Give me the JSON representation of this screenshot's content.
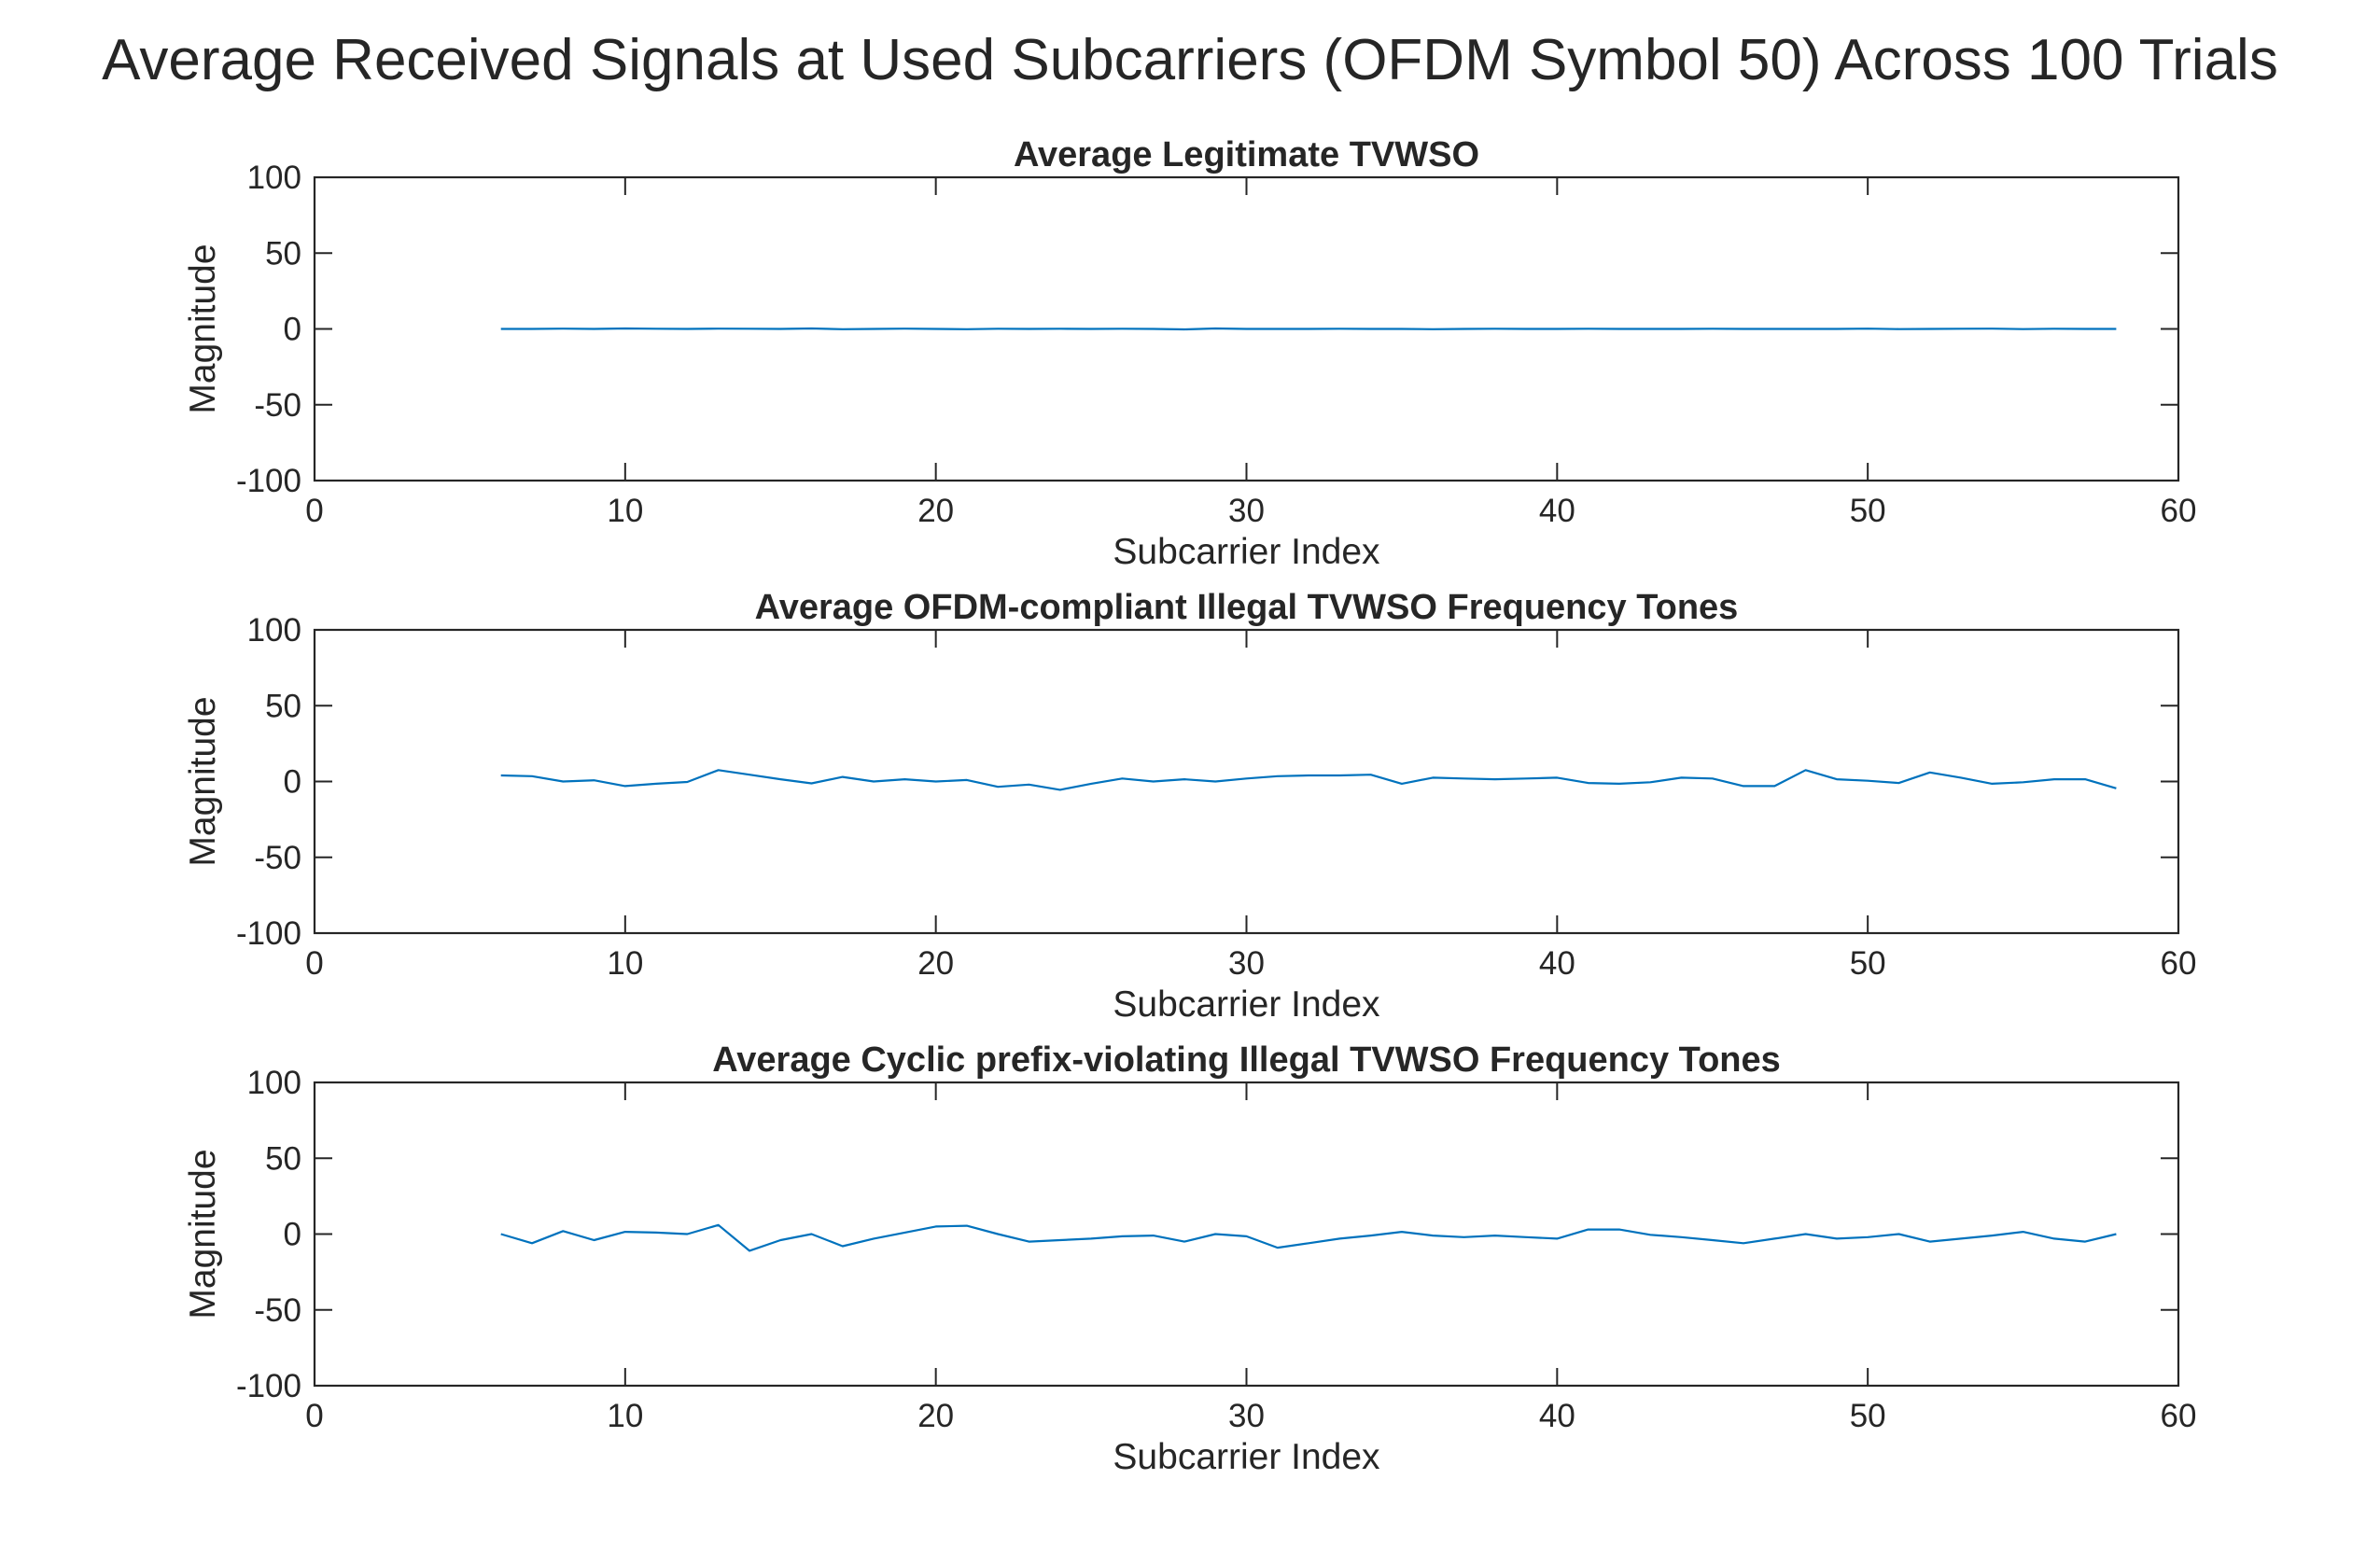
{
  "suptitle": "Average Received Signals at Used Subcarriers (OFDM Symbol 50) Across 100 Trials",
  "chart_data": [
    {
      "type": "line",
      "title": "Average Legitimate TVWSO",
      "xlabel": "Subcarrier Index",
      "ylabel": "Magnitude",
      "xlim": [
        0,
        60
      ],
      "ylim": [
        -100,
        100
      ],
      "xticks": [
        0,
        10,
        20,
        30,
        40,
        50,
        60
      ],
      "yticks": [
        -100,
        -50,
        0,
        50,
        100
      ],
      "grid": false,
      "color": "#0072bd",
      "x": [
        6,
        7,
        8,
        9,
        10,
        11,
        12,
        13,
        14,
        15,
        16,
        17,
        18,
        19,
        20,
        21,
        22,
        23,
        24,
        25,
        26,
        27,
        28,
        29,
        30,
        31,
        32,
        33,
        34,
        35,
        36,
        37,
        38,
        39,
        40,
        41,
        42,
        43,
        44,
        45,
        46,
        47,
        48,
        49,
        50,
        51,
        52,
        53,
        54,
        55,
        56,
        57,
        58
      ],
      "y": [
        0,
        0,
        0.2,
        0,
        0.3,
        0.1,
        0,
        0.2,
        0.1,
        0,
        0.3,
        -0.2,
        0,
        0.2,
        0,
        -0.2,
        0.1,
        0,
        0.1,
        0,
        0.1,
        0,
        -0.3,
        0.3,
        0,
        0,
        0,
        0.1,
        0,
        0,
        -0.2,
        0,
        0.1,
        0,
        0,
        0.1,
        0,
        0,
        0,
        0.1,
        0,
        0,
        0,
        0,
        0.2,
        -0.1,
        0,
        0.1,
        0.2,
        -0.1,
        0.1,
        0,
        0
      ]
    },
    {
      "type": "line",
      "title": "Average OFDM-compliant Illegal TVWSO Frequency Tones",
      "xlabel": "Subcarrier Index",
      "ylabel": "Magnitude",
      "xlim": [
        0,
        60
      ],
      "ylim": [
        -100,
        100
      ],
      "xticks": [
        0,
        10,
        20,
        30,
        40,
        50,
        60
      ],
      "yticks": [
        -100,
        -50,
        0,
        50,
        100
      ],
      "grid": false,
      "color": "#0072bd",
      "x": [
        6,
        7,
        8,
        9,
        10,
        11,
        12,
        13,
        14,
        15,
        16,
        17,
        18,
        19,
        20,
        21,
        22,
        23,
        24,
        25,
        26,
        27,
        28,
        29,
        30,
        31,
        32,
        33,
        34,
        35,
        36,
        37,
        38,
        39,
        40,
        41,
        42,
        43,
        44,
        45,
        46,
        47,
        48,
        49,
        50,
        51,
        52,
        53,
        54,
        55,
        56,
        57,
        58
      ],
      "y": [
        4,
        3.5,
        0,
        0.8,
        -3,
        -1.5,
        -0.3,
        7.5,
        4.5,
        1.5,
        -1.2,
        3,
        0,
        1.5,
        0,
        1,
        -3.5,
        -2,
        -5.5,
        -1.5,
        2,
        0,
        1.5,
        0,
        2,
        3.5,
        4,
        4,
        4.5,
        -1.5,
        2.5,
        2,
        1.5,
        2,
        2.5,
        -1,
        -1.5,
        -0.5,
        2.5,
        2,
        -3,
        -3,
        7.5,
        1.5,
        0.5,
        -1,
        6,
        2.5,
        -1.5,
        -0.5,
        1.5,
        1.5,
        -4.5
      ]
    },
    {
      "type": "line",
      "title": "Average Cyclic prefix-violating Illegal TVWSO Frequency Tones",
      "xlabel": "Subcarrier Index",
      "ylabel": "Magnitude",
      "xlim": [
        0,
        60
      ],
      "ylim": [
        -100,
        100
      ],
      "xticks": [
        0,
        10,
        20,
        30,
        40,
        50,
        60
      ],
      "yticks": [
        -100,
        -50,
        0,
        50,
        100
      ],
      "grid": false,
      "color": "#0072bd",
      "x": [
        6,
        7,
        8,
        9,
        10,
        11,
        12,
        13,
        14,
        15,
        16,
        17,
        18,
        19,
        20,
        21,
        22,
        23,
        24,
        25,
        26,
        27,
        28,
        29,
        30,
        31,
        32,
        33,
        34,
        35,
        36,
        37,
        38,
        39,
        40,
        41,
        42,
        43,
        44,
        45,
        46,
        47,
        48,
        49,
        50,
        51,
        52,
        53,
        54,
        55,
        56,
        57,
        58
      ],
      "y": [
        0,
        -6,
        2,
        -4,
        1.5,
        1,
        0,
        6,
        -11,
        -4,
        0,
        -8,
        -3,
        1,
        5,
        5.5,
        0,
        -5,
        -4,
        -3,
        -1.5,
        -1,
        -5,
        0,
        -1.5,
        -9,
        -6,
        -3,
        -1,
        1.5,
        -1,
        -2,
        -1,
        -2,
        -3,
        3,
        3,
        -0.5,
        -2,
        -4,
        -6,
        -3,
        0,
        -3,
        -2,
        0,
        -5,
        -3,
        -1,
        1.5,
        -3,
        -5,
        0
      ]
    }
  ]
}
